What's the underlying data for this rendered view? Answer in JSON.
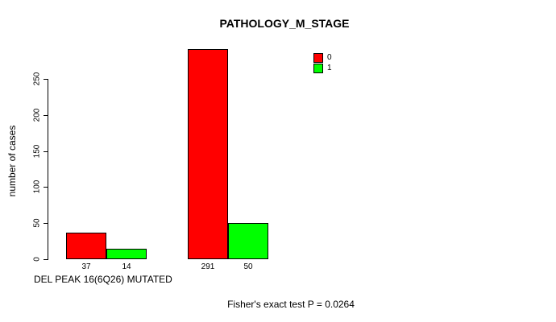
{
  "chart_data": {
    "type": "bar",
    "title": "PATHOLOGY_M_STAGE",
    "ylabel": "number of cases",
    "xlabel": "DEL PEAK 16(6Q26) MUTATED",
    "annotation": "Fisher's exact test P = 0.0264",
    "ylim": [
      0,
      250
    ],
    "yticks": [
      "0",
      "50",
      "100",
      "150",
      "200",
      "250"
    ],
    "grid": false,
    "legend_position": "top-right",
    "legend_entries": [
      "0",
      "1"
    ],
    "series": [
      {
        "name": "0",
        "color": "#ff0000",
        "values": [
          37,
          291
        ]
      },
      {
        "name": "1",
        "color": "#00ff00",
        "values": [
          14,
          50
        ]
      }
    ],
    "groups": 2,
    "colors": {
      "bar_border": "#000000",
      "axis": "#000000",
      "background": "#ffffff",
      "text": "#000000"
    }
  }
}
